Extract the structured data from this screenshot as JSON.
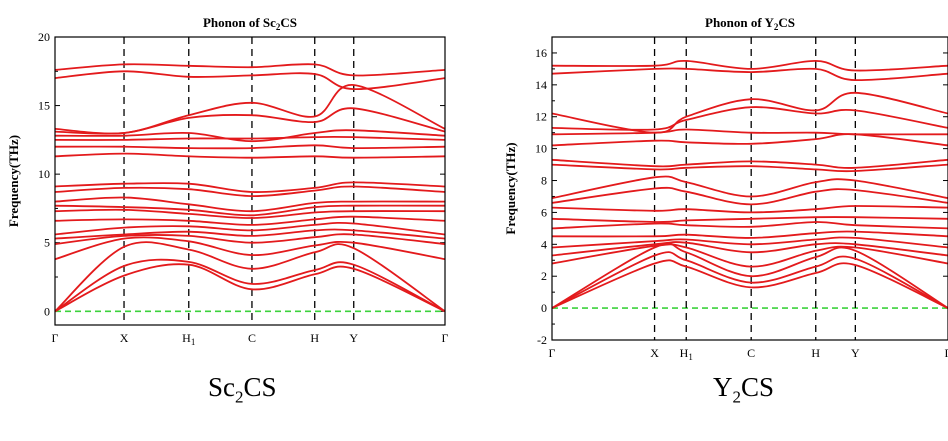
{
  "captions": {
    "left": {
      "base": "Sc",
      "sub": "2",
      "rest": "CS"
    },
    "right": {
      "base": "Y",
      "sub": "2",
      "rest": "CS"
    }
  },
  "colors": {
    "band": "#e31a1c",
    "zero_line": "#3cd23c",
    "frame": "#000000"
  },
  "chart_data": [
    {
      "type": "line",
      "title_parts": {
        "pre": "Phonon of Sc",
        "sub": "2",
        "post": "CS"
      },
      "ylabel": "Frequency(THz)",
      "ylim": [
        -1,
        20
      ],
      "yticks": [
        0,
        5,
        10,
        15,
        20
      ],
      "kpath": [
        {
          "label": "Γ",
          "sub": "",
          "x": 0
        },
        {
          "label": "X",
          "sub": "",
          "x": 0.177
        },
        {
          "label": "H",
          "sub": "1",
          "x": 0.343
        },
        {
          "label": "C",
          "sub": "",
          "x": 0.505
        },
        {
          "label": "H",
          "sub": "",
          "x": 0.666
        },
        {
          "label": "Y",
          "sub": "",
          "x": 0.766
        },
        {
          "label": "Γ",
          "sub": "",
          "x": 1.0
        }
      ],
      "zero_line": 0,
      "bands_at_kpoints": [
        [
          0,
          2.6,
          3.4,
          1.6,
          2.7,
          3.1,
          0
        ],
        [
          0,
          3.3,
          3.6,
          2.0,
          3.0,
          3.4,
          0
        ],
        [
          0,
          4.7,
          4.5,
          3.1,
          4.3,
          4.6,
          0
        ],
        [
          3.8,
          5.3,
          5.1,
          4.1,
          4.8,
          5.0,
          3.8
        ],
        [
          4.9,
          5.5,
          5.5,
          5.0,
          5.4,
          5.6,
          4.9
        ],
        [
          5.3,
          5.6,
          5.8,
          5.5,
          5.9,
          5.9,
          5.3
        ],
        [
          5.6,
          6.1,
          6.2,
          5.9,
          6.3,
          6.4,
          5.6
        ],
        [
          6.6,
          6.7,
          6.6,
          6.3,
          6.7,
          6.9,
          6.6
        ],
        [
          7.3,
          7.4,
          7.1,
          6.8,
          7.2,
          7.3,
          7.3
        ],
        [
          7.7,
          7.6,
          7.4,
          7.0,
          7.6,
          7.7,
          7.7
        ],
        [
          8.0,
          8.3,
          7.8,
          7.3,
          7.9,
          8.0,
          8.0
        ],
        [
          8.7,
          9.0,
          8.9,
          8.4,
          8.8,
          9.1,
          8.7
        ],
        [
          9.1,
          9.3,
          9.3,
          8.7,
          9.0,
          9.4,
          9.1
        ],
        [
          11.3,
          11.5,
          11.3,
          11.2,
          11.3,
          11.2,
          11.3
        ],
        [
          12.0,
          12.0,
          11.9,
          11.9,
          12.1,
          11.9,
          12.0
        ],
        [
          12.5,
          12.5,
          12.6,
          12.6,
          12.7,
          12.7,
          12.5
        ],
        [
          12.8,
          12.8,
          13.0,
          12.4,
          13.0,
          13.2,
          12.8
        ],
        [
          13.1,
          13.0,
          14.1,
          14.3,
          13.8,
          14.8,
          13.1
        ],
        [
          13.3,
          13.0,
          14.3,
          15.2,
          14.2,
          16.5,
          13.3
        ],
        [
          17.0,
          17.5,
          17.1,
          17.2,
          17.3,
          16.2,
          17.0
        ],
        [
          17.6,
          18.0,
          17.9,
          17.8,
          18.0,
          17.2,
          17.6
        ]
      ]
    },
    {
      "type": "line",
      "title_parts": {
        "pre": "Phonon of Y",
        "sub": "2",
        "post": "CS"
      },
      "ylabel": "Frequency(THz)",
      "ylim": [
        -2,
        17
      ],
      "yticks": [
        -2,
        0,
        2,
        4,
        6,
        8,
        10,
        12,
        14,
        16
      ],
      "kpath": [
        {
          "label": "Γ",
          "sub": "",
          "x": 0
        },
        {
          "label": "X",
          "sub": "",
          "x": 0.259
        },
        {
          "label": "H",
          "sub": "1",
          "x": 0.339
        },
        {
          "label": "C",
          "sub": "",
          "x": 0.503
        },
        {
          "label": "H",
          "sub": "",
          "x": 0.666
        },
        {
          "label": "Y",
          "sub": "",
          "x": 0.766
        },
        {
          "label": "Γ",
          "sub": "",
          "x": 1.0
        }
      ],
      "zero_line": 0,
      "bands_at_kpoints": [
        [
          0,
          2.8,
          2.6,
          1.3,
          2.2,
          2.7,
          0
        ],
        [
          0,
          3.3,
          3.0,
          1.6,
          2.6,
          3.1,
          0
        ],
        [
          0,
          3.8,
          3.5,
          2.0,
          3.2,
          3.6,
          0
        ],
        [
          2.8,
          3.9,
          3.8,
          2.6,
          3.6,
          3.8,
          2.8
        ],
        [
          3.3,
          4.0,
          4.1,
          3.5,
          4.0,
          4.0,
          3.3
        ],
        [
          3.8,
          4.2,
          4.3,
          4.0,
          4.3,
          4.4,
          3.8
        ],
        [
          4.5,
          4.5,
          4.6,
          4.4,
          4.7,
          4.8,
          4.5
        ],
        [
          5.0,
          5.3,
          5.2,
          5.1,
          5.4,
          5.2,
          5.0
        ],
        [
          5.6,
          5.4,
          5.5,
          5.6,
          5.7,
          5.7,
          5.6
        ],
        [
          6.3,
          6.1,
          6.2,
          6.0,
          6.2,
          6.4,
          6.3
        ],
        [
          6.6,
          7.5,
          7.3,
          6.5,
          7.3,
          7.4,
          6.6
        ],
        [
          6.9,
          8.2,
          7.9,
          7.0,
          7.9,
          8.0,
          6.9
        ],
        [
          9.0,
          8.7,
          8.8,
          8.9,
          8.7,
          8.6,
          9.0
        ],
        [
          9.3,
          8.9,
          9.0,
          9.2,
          9.0,
          8.8,
          9.3
        ],
        [
          10.2,
          10.5,
          10.4,
          10.3,
          10.6,
          10.9,
          10.2
        ],
        [
          10.9,
          11.0,
          11.2,
          11.0,
          11.0,
          10.9,
          10.9
        ],
        [
          11.3,
          11.2,
          11.8,
          12.6,
          12.2,
          12.4,
          11.3
        ],
        [
          12.2,
          11.0,
          12.0,
          13.1,
          12.4,
          13.5,
          12.2
        ],
        [
          14.7,
          15.0,
          15.0,
          14.8,
          15.0,
          14.3,
          14.7
        ],
        [
          15.2,
          15.2,
          15.5,
          15.0,
          15.5,
          14.9,
          15.2
        ]
      ]
    }
  ]
}
